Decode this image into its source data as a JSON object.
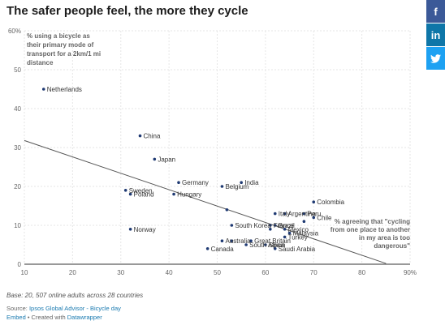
{
  "title": "The safer people feel, the more they cycle",
  "social": {
    "facebook_icon": "f",
    "linkedin_icon": "in",
    "twitter_icon": "twitter-bird"
  },
  "chart_data": {
    "type": "scatter",
    "xlim": [
      10,
      90
    ],
    "ylim": [
      0,
      60
    ],
    "x_ticks": [
      "10",
      "20",
      "30",
      "40",
      "50",
      "60",
      "70",
      "80",
      "90%"
    ],
    "y_ticks": [
      "0",
      "10",
      "20",
      "30",
      "40",
      "50",
      "60%"
    ],
    "ylabel": "% using a bicycle as their primary mode of transport for a 2km/1 mi distance",
    "xlabel": "% agreeing that \"cycling from one place to another in my area is too dangerous\"",
    "grid": true,
    "dot_color": "#1f3a73",
    "trendline": {
      "x": [
        10,
        85
      ],
      "y": [
        31.8,
        0.2
      ]
    },
    "points": [
      {
        "label": "Netherlands",
        "x": 14,
        "y": 45
      },
      {
        "label": "China",
        "x": 34,
        "y": 33
      },
      {
        "label": "Japan",
        "x": 37,
        "y": 27
      },
      {
        "label": "Germany",
        "x": 42,
        "y": 21
      },
      {
        "label": "Belgium",
        "x": 51,
        "y": 20
      },
      {
        "label": "India",
        "x": 55,
        "y": 21
      },
      {
        "label": "Sweden",
        "x": 31,
        "y": 19
      },
      {
        "label": "Poland",
        "x": 32,
        "y": 18
      },
      {
        "label": "Hungary",
        "x": 41,
        "y": 18
      },
      {
        "label": "Colombia",
        "x": 70,
        "y": 16
      },
      {
        "label": "",
        "x": 52,
        "y": 14
      },
      {
        "label": "Italy",
        "x": 62,
        "y": 13
      },
      {
        "label": "Argentina",
        "x": 64,
        "y": 13
      },
      {
        "label": "Peru",
        "x": 68,
        "y": 13
      },
      {
        "label": "Chile",
        "x": 70,
        "y": 12
      },
      {
        "label": "",
        "x": 68,
        "y": 11
      },
      {
        "label": "South Korea",
        "x": 53,
        "y": 10
      },
      {
        "label": "France",
        "x": 61,
        "y": 10
      },
      {
        "label": "Brazil",
        "x": 62,
        "y": 10
      },
      {
        "label": "Mexico",
        "x": 64,
        "y": 9
      },
      {
        "label": "",
        "x": 61,
        "y": 9
      },
      {
        "label": "Norway",
        "x": 32,
        "y": 9
      },
      {
        "label": "Malaysia",
        "x": 65,
        "y": 8
      },
      {
        "label": "Turkey",
        "x": 64,
        "y": 7
      },
      {
        "label": "Australia",
        "x": 51,
        "y": 6
      },
      {
        "label": "Great Britain",
        "x": 57,
        "y": 6
      },
      {
        "label": "",
        "x": 53,
        "y": 6
      },
      {
        "label": "Canada",
        "x": 48,
        "y": 4
      },
      {
        "label": "South Africa",
        "x": 56,
        "y": 5
      },
      {
        "label": "Spain",
        "x": 60,
        "y": 5
      },
      {
        "label": "Saudi Arabia",
        "x": 62,
        "y": 4
      }
    ]
  },
  "footer": {
    "base": "Base: 20, 507 online adults across 28 countries",
    "source_prefix": "Source: ",
    "source_link": "Ipsos Global Advisor - Bicycle day",
    "embed_link": "Embed",
    "created_with": " • Created with ",
    "datawrapper_link": "Datawrapper"
  }
}
